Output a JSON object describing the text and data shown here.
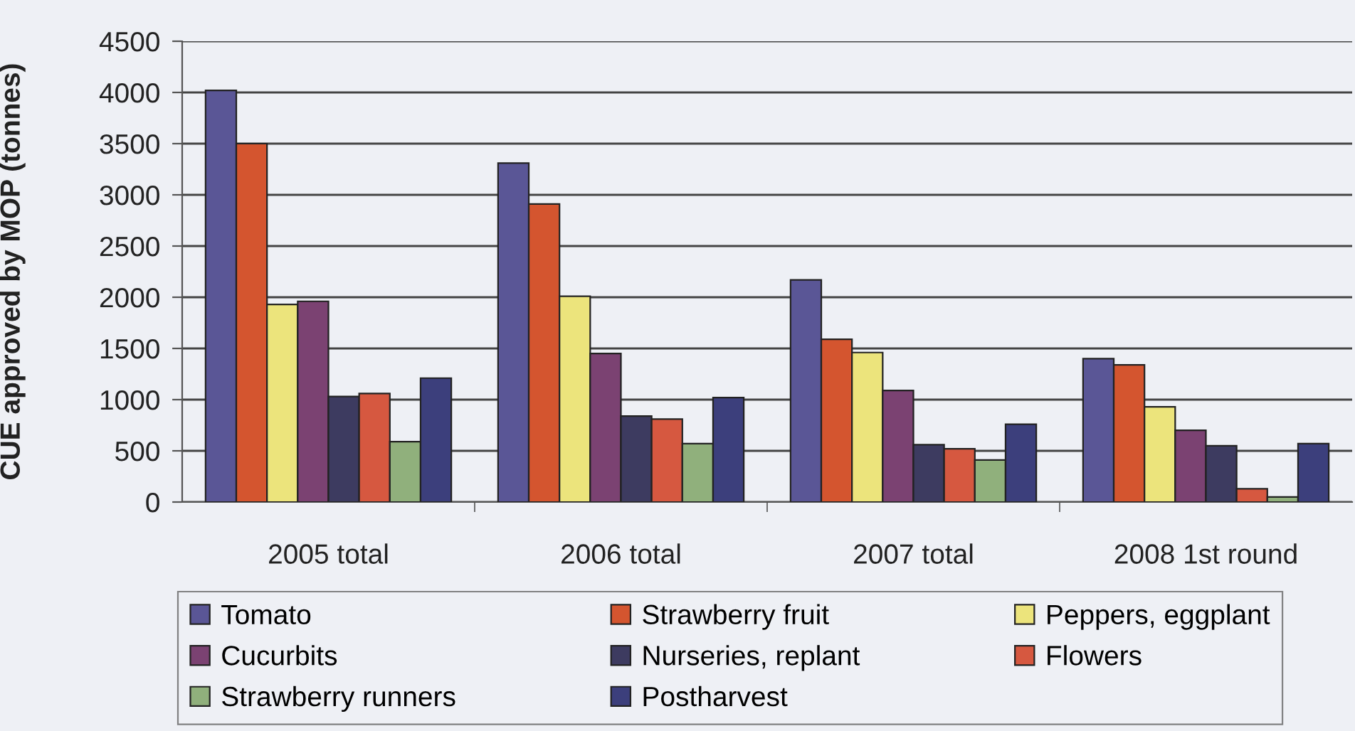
{
  "chart_data": {
    "type": "bar",
    "ylabel": "CUE approved by MOP (tonnes)",
    "categories": [
      "2005 total",
      "2006 total",
      "2007 total",
      "2008 1st round"
    ],
    "series": [
      {
        "name": "Tomato",
        "color": "#5a5696",
        "values": [
          4020,
          3310,
          2170,
          1400
        ]
      },
      {
        "name": "Strawberry fruit",
        "color": "#d4552f",
        "values": [
          3500,
          2910,
          1590,
          1340
        ]
      },
      {
        "name": "Peppers, eggplant",
        "color": "#ece47c",
        "values": [
          1930,
          2010,
          1460,
          930
        ]
      },
      {
        "name": "Cucurbits",
        "color": "#7b4272",
        "values": [
          1960,
          1450,
          1090,
          700
        ]
      },
      {
        "name": "Nurseries, replant",
        "color": "#3d3b60",
        "values": [
          1030,
          840,
          560,
          550
        ]
      },
      {
        "name": "Flowers",
        "color": "#d65840",
        "values": [
          1060,
          810,
          520,
          130
        ]
      },
      {
        "name": "Strawberry runners",
        "color": "#90b07c",
        "values": [
          590,
          570,
          410,
          50
        ]
      },
      {
        "name": "Postharvest",
        "color": "#3c3f7c",
        "values": [
          1210,
          1020,
          760,
          570
        ]
      }
    ],
    "ylim": [
      0,
      4500
    ],
    "yticks": [
      0,
      500,
      1000,
      1500,
      2000,
      2500,
      3000,
      3500,
      4000,
      4500
    ],
    "grid": "y",
    "legend": "bottom"
  }
}
